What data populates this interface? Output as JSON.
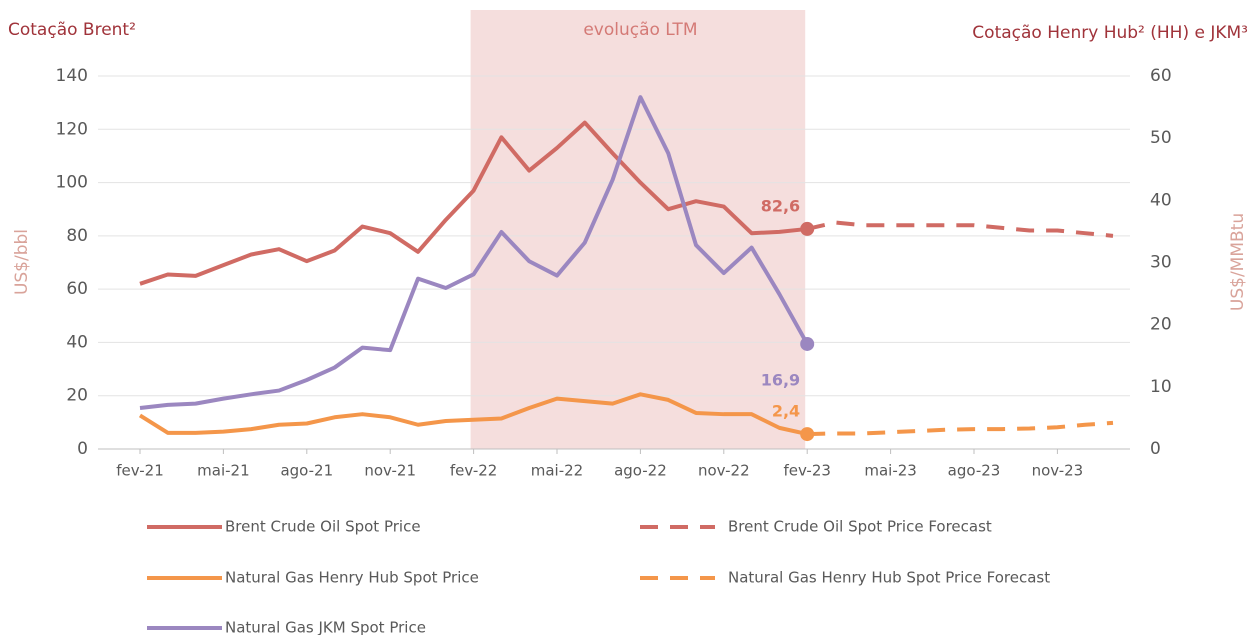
{
  "chart_data": {
    "type": "line",
    "title": "Cotação Brent²",
    "title_right": "Cotação Henry Hub² (HH) e JKM³",
    "ylabel": "US$/bbl",
    "y2label": "US$/MMBtu",
    "highlight": {
      "label": "evolução LTM",
      "start": "fev-22",
      "end": "fev-23",
      "color": "#f5dedd"
    },
    "categories": [
      "fev-21",
      null,
      null,
      "mai-21",
      null,
      null,
      "ago-21",
      null,
      null,
      "nov-21",
      null,
      null,
      "fev-22",
      null,
      null,
      "mai-22",
      null,
      null,
      "ago-22",
      null,
      null,
      "nov-22",
      null,
      null,
      "fev-23",
      null,
      null,
      "mai-23",
      null,
      null,
      "ago-23",
      null,
      null,
      "nov-23",
      null,
      null
    ],
    "ylim": [
      0,
      140
    ],
    "yticks": [
      0,
      20,
      40,
      60,
      80,
      100,
      120,
      140
    ],
    "y2lim": [
      0,
      60
    ],
    "y2ticks": [
      0,
      10,
      20,
      30,
      40,
      50,
      60
    ],
    "grid": true,
    "series": [
      {
        "name": "Brent Crude Oil Spot Price",
        "color": "#d06b64",
        "dashed": false,
        "values": [
          62,
          65.5,
          65,
          69,
          73,
          75,
          70.5,
          74.5,
          83.5,
          81,
          74,
          86,
          97,
          117,
          104.5,
          113,
          122.5,
          111,
          100,
          90,
          93,
          91,
          81,
          81.5,
          82.6,
          null,
          null,
          null,
          null,
          null,
          null,
          null,
          null,
          null,
          null,
          null
        ],
        "value_labels": [
          null,
          null,
          null,
          null,
          null,
          null,
          null,
          null,
          null,
          null,
          null,
          null,
          null,
          null,
          null,
          null,
          null,
          null,
          null,
          null,
          null,
          null,
          null,
          null,
          "82,6",
          null,
          null,
          null,
          null,
          null,
          null,
          null,
          null,
          null,
          null,
          null
        ]
      },
      {
        "name": "Brent Crude Oil Spot Price Forecast",
        "color": "#d06b64",
        "dashed": true,
        "values": [
          null,
          null,
          null,
          null,
          null,
          null,
          null,
          null,
          null,
          null,
          null,
          null,
          null,
          null,
          null,
          null,
          null,
          null,
          null,
          null,
          null,
          null,
          null,
          null,
          82.6,
          85,
          84,
          84,
          84,
          84,
          84,
          83,
          82,
          82,
          81,
          80
        ]
      },
      {
        "name": "Natural Gas Henry Hub Spot Price",
        "color": "#f4964a",
        "dashed": false,
        "axis": "y2",
        "values": [
          5.4,
          2.6,
          2.6,
          2.8,
          3.2,
          3.9,
          4.1,
          5.1,
          5.6,
          5.1,
          3.9,
          4.5,
          4.7,
          4.9,
          6.6,
          8.1,
          7.7,
          7.3,
          8.8,
          7.9,
          5.8,
          5.6,
          5.6,
          3.4,
          2.4,
          null,
          null,
          null,
          null,
          null,
          null,
          null,
          null,
          null,
          null,
          null
        ],
        "value_labels": [
          null,
          null,
          null,
          null,
          null,
          null,
          null,
          null,
          null,
          null,
          null,
          null,
          null,
          null,
          null,
          null,
          null,
          null,
          null,
          null,
          null,
          null,
          null,
          null,
          "2,4",
          null,
          null,
          null,
          null,
          null,
          null,
          null,
          null,
          null,
          null,
          null
        ]
      },
      {
        "name": "Natural Gas Henry Hub Spot Price Forecast",
        "color": "#f4964a",
        "dashed": true,
        "axis": "y2",
        "values": [
          null,
          null,
          null,
          null,
          null,
          null,
          null,
          null,
          null,
          null,
          null,
          null,
          null,
          null,
          null,
          null,
          null,
          null,
          null,
          null,
          null,
          null,
          null,
          null,
          2.4,
          2.5,
          2.5,
          2.7,
          2.9,
          3.1,
          3.2,
          3.2,
          3.3,
          3.5,
          3.9,
          4.2
        ]
      },
      {
        "name": "Natural Gas JKM Spot Price",
        "color": "#9b87c0",
        "dashed": false,
        "axis": "y2",
        "values": [
          6.6,
          7.1,
          7.3,
          8.1,
          8.8,
          9.4,
          11.1,
          13.1,
          16.3,
          15.9,
          27.4,
          25.9,
          28.1,
          34.9,
          30.2,
          27.9,
          33.2,
          43.3,
          56.6,
          47.6,
          32.8,
          28.3,
          32.4,
          24.9,
          16.9,
          null,
          null,
          null,
          null,
          null,
          null,
          null,
          null,
          null,
          null,
          null
        ],
        "value_labels": [
          null,
          null,
          null,
          null,
          null,
          null,
          null,
          null,
          null,
          null,
          null,
          null,
          null,
          null,
          null,
          null,
          null,
          null,
          null,
          null,
          null,
          null,
          null,
          null,
          "16,9",
          null,
          null,
          null,
          null,
          null,
          null,
          null,
          null,
          null,
          null,
          null
        ]
      }
    ]
  }
}
